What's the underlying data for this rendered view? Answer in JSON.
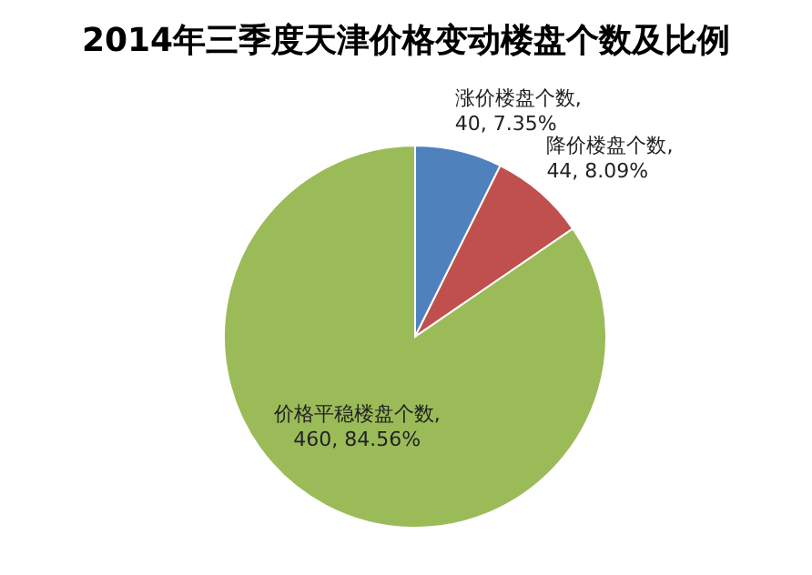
{
  "chart_data": {
    "type": "pie",
    "title": "2014年三季度天津价格变动楼盘个数及比例",
    "values": [
      40,
      44,
      460
    ],
    "colors": [
      "#4f81bd",
      "#c0504d",
      "#9bbb59"
    ],
    "value_labels": [
      "涨价楼盘个数, 40, 7.35%",
      "降价楼盘个数, 44, 8.09%",
      "价格平稳楼盘个数, 460, 84.56%"
    ]
  }
}
